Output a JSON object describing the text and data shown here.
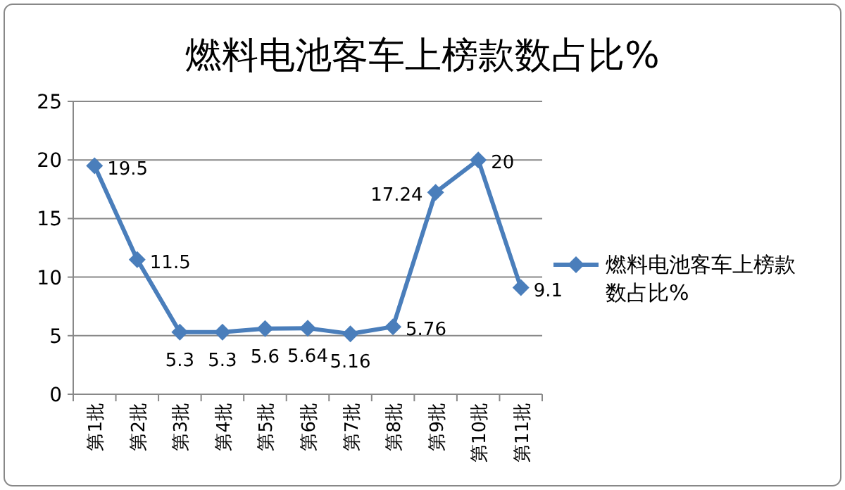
{
  "chart_data": {
    "type": "line",
    "title": "燃料电池客车上榜款数占比%",
    "categories": [
      "第1批",
      "第2批",
      "第3批",
      "第4批",
      "第5批",
      "第6批",
      "第7批",
      "第8批",
      "第9批",
      "第10批",
      "第11批"
    ],
    "series": [
      {
        "name": "燃料电池客车上榜款数占比%",
        "color": "#4a7ebb",
        "values": [
          19.5,
          11.5,
          5.3,
          5.3,
          5.6,
          5.64,
          5.16,
          5.76,
          17.24,
          20,
          9.1
        ]
      }
    ],
    "ylim": [
      0,
      25
    ],
    "yticks": [
      0,
      5,
      10,
      15,
      20,
      25
    ],
    "grid": "y",
    "legend": "right",
    "marker": "diamond",
    "line_style": "solid",
    "data_labels": true
  }
}
